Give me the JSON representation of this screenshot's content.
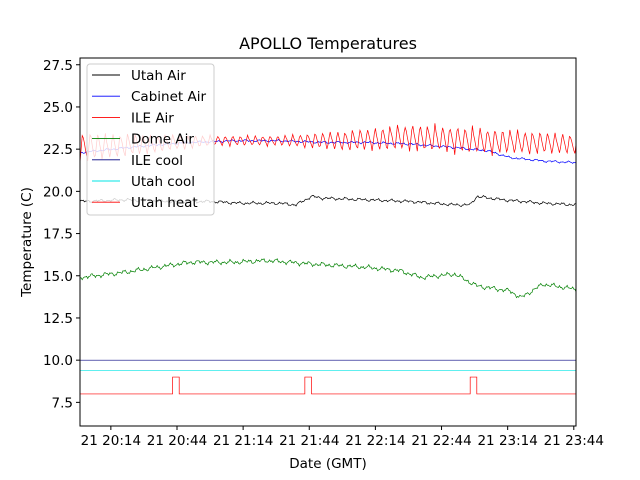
{
  "chart_data": {
    "type": "line",
    "title": "APOLLO Temperatures",
    "xlabel": "Date (GMT)",
    "ylabel": "Temperature (C)",
    "x_unit": "minutes after 21 20:00 GMT",
    "xlim": [
      0,
      225
    ],
    "ylim": [
      6.1,
      27.9
    ],
    "yticks": [
      7.5,
      10.0,
      12.5,
      15.0,
      17.5,
      20.0,
      22.5,
      25.0,
      27.5
    ],
    "ytick_labels": [
      "7.5",
      "10.0",
      "12.5",
      "15.0",
      "17.5",
      "20.0",
      "22.5",
      "25.0",
      "27.5"
    ],
    "xticks": [
      14,
      44,
      74,
      104,
      134,
      164,
      194,
      224
    ],
    "xtick_labels": [
      "21 20:14",
      "21 20:44",
      "21 21:14",
      "21 21:44",
      "21 22:14",
      "21 22:44",
      "21 23:14",
      "21 23:44"
    ],
    "grid": false,
    "legend_position": "upper-left",
    "series": [
      {
        "name": "Utah Air",
        "color": "#000000",
        "style": "wavy",
        "x": [
          0,
          20,
          40,
          60,
          72,
          90,
          98,
          105,
          110,
          130,
          150,
          170,
          177,
          180,
          192,
          210,
          225
        ],
        "y": [
          19.4,
          19.5,
          19.4,
          19.4,
          19.3,
          19.3,
          19.2,
          19.7,
          19.6,
          19.5,
          19.4,
          19.2,
          19.2,
          19.7,
          19.5,
          19.3,
          19.2
        ],
        "noise": 0.08,
        "period": 2.3
      },
      {
        "name": "Cabinet Air",
        "color": "#0000ff",
        "style": "wavy",
        "x": [
          0,
          15,
          30,
          50,
          70,
          90,
          110,
          130,
          150,
          170,
          185,
          195,
          210,
          225
        ],
        "y": [
          22.3,
          22.5,
          22.7,
          22.9,
          23.0,
          23.0,
          22.9,
          22.9,
          22.8,
          22.6,
          22.4,
          22.0,
          21.8,
          21.7
        ],
        "noise": 0.06,
        "period": 2.1
      },
      {
        "name": "ILE Air",
        "color": "#ff0000",
        "style": "sawtooth",
        "x": [
          0,
          30,
          60,
          90,
          120,
          150,
          180,
          225
        ],
        "y": [
          22.6,
          22.8,
          23.0,
          23.0,
          23.0,
          23.2,
          23.0,
          22.8
        ],
        "amplitude": [
          0.9,
          0.6,
          0.3,
          0.3,
          0.6,
          0.8,
          0.8,
          0.6
        ],
        "period": 3.4
      },
      {
        "name": "Dome Air",
        "color": "#008000",
        "style": "wavy",
        "x": [
          0,
          20,
          35,
          50,
          70,
          85,
          105,
          130,
          145,
          155,
          170,
          180,
          195,
          200,
          210,
          225
        ],
        "y": [
          14.9,
          15.2,
          15.5,
          15.8,
          15.8,
          15.9,
          15.7,
          15.5,
          15.3,
          14.9,
          15.1,
          14.4,
          14.1,
          13.7,
          14.5,
          14.2
        ],
        "noise": 0.12,
        "period": 2.0
      },
      {
        "name": "ILE cool",
        "color": "#000080",
        "style": "flat",
        "x": [
          0,
          225
        ],
        "y": [
          10.0,
          10.0
        ]
      },
      {
        "name": "Utah cool",
        "color": "#00e5e5",
        "style": "flat",
        "x": [
          0,
          225
        ],
        "y": [
          9.4,
          9.4
        ]
      },
      {
        "name": "Utah heat",
        "color": "#ff0000",
        "style": "step",
        "x": [
          0,
          42,
          42,
          45,
          45,
          102,
          102,
          105,
          105,
          177,
          177,
          180,
          180,
          225
        ],
        "y": [
          8.0,
          8.0,
          9.0,
          9.0,
          8.0,
          8.0,
          9.0,
          9.0,
          8.0,
          8.0,
          9.0,
          9.0,
          8.0,
          8.0
        ]
      }
    ]
  }
}
